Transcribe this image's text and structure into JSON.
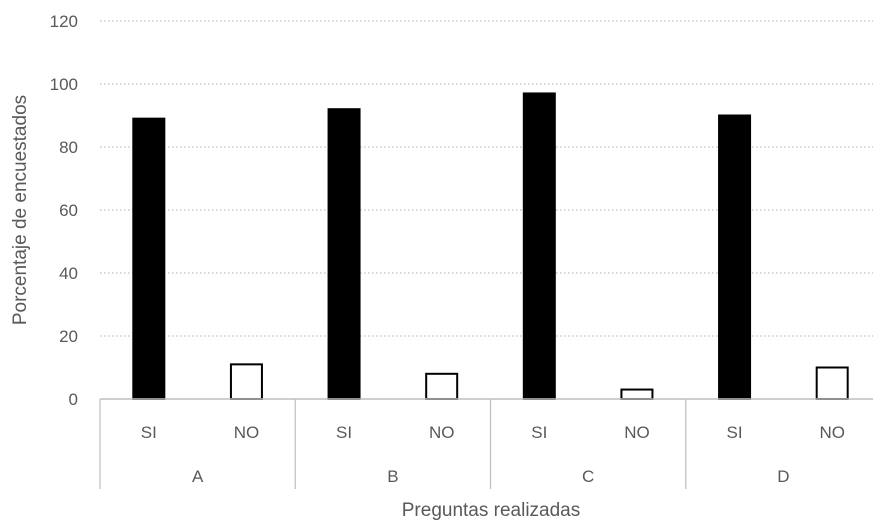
{
  "chart_data": {
    "type": "bar",
    "title": "",
    "ylabel": "Porcentaje de encuestados",
    "xlabel": "Preguntas realizadas",
    "ylim": [
      0,
      120
    ],
    "yticks": [
      0,
      20,
      40,
      60,
      80,
      100,
      120
    ],
    "grid": "horizontal-dotted",
    "groups": [
      {
        "label": "A",
        "bars": [
          {
            "label": "SI",
            "value": 89,
            "fill": "#000000"
          },
          {
            "label": "NO",
            "value": 11,
            "fill": "#ffffff"
          }
        ]
      },
      {
        "label": "B",
        "bars": [
          {
            "label": "SI",
            "value": 92,
            "fill": "#000000"
          },
          {
            "label": "NO",
            "value": 8,
            "fill": "#ffffff"
          }
        ]
      },
      {
        "label": "C",
        "bars": [
          {
            "label": "SI",
            "value": 97,
            "fill": "#000000"
          },
          {
            "label": "NO",
            "value": 3,
            "fill": "#ffffff"
          }
        ]
      },
      {
        "label": "D",
        "bars": [
          {
            "label": "SI",
            "value": 90,
            "fill": "#000000"
          },
          {
            "label": "NO",
            "value": 10,
            "fill": "#ffffff"
          }
        ]
      }
    ],
    "colors": {
      "bar_stroke": "#000000",
      "grid": "#bfbfbf",
      "axis": "#bfbfbf",
      "text": "#595959"
    }
  }
}
